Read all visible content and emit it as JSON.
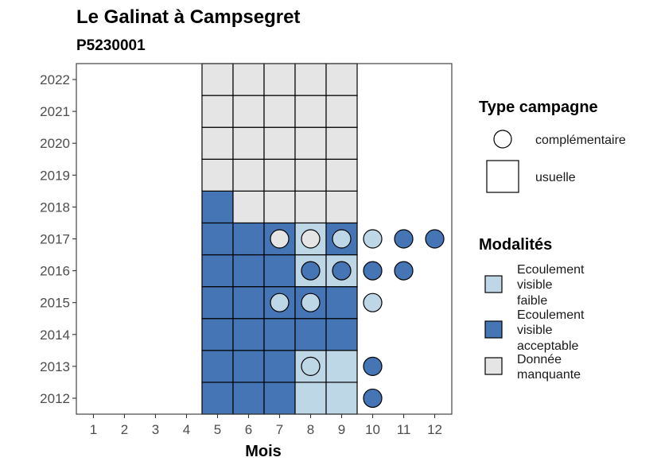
{
  "chart_data": {
    "type": "heatmap",
    "title": "Le Galinat à Campsegret",
    "subtitle": "P5230001",
    "xlabel": "Mois",
    "ylabel": "",
    "x_ticks": [
      "1",
      "2",
      "3",
      "4",
      "5",
      "6",
      "7",
      "8",
      "9",
      "10",
      "11",
      "12"
    ],
    "y_ticks": [
      "2012",
      "2013",
      "2014",
      "2015",
      "2016",
      "2017",
      "2018",
      "2019",
      "2020",
      "2021",
      "2022"
    ],
    "grid": false,
    "legend_position": "right",
    "colors": {
      "faible": "#bdd7e7",
      "acceptable": "#4575b4",
      "manquante": "#e5e5e5",
      "outline": "#000000"
    },
    "legend_campagne": {
      "title": "Type campagne",
      "items": [
        {
          "shape": "circle",
          "label": "complémentaire"
        },
        {
          "shape": "square",
          "label": "usuelle"
        }
      ]
    },
    "legend_modalites": {
      "title": "Modalités",
      "items": [
        {
          "key": "faible",
          "lines": [
            "Ecoulement",
            "visible",
            "faible"
          ]
        },
        {
          "key": "acceptable",
          "lines": [
            "Ecoulement",
            "visible",
            "acceptable"
          ]
        },
        {
          "key": "manquante",
          "lines": [
            "Donnée",
            "manquante"
          ]
        }
      ]
    },
    "usuelle": [
      {
        "year": 2012,
        "month": 5,
        "modalite": "acceptable"
      },
      {
        "year": 2012,
        "month": 6,
        "modalite": "acceptable"
      },
      {
        "year": 2012,
        "month": 7,
        "modalite": "acceptable"
      },
      {
        "year": 2012,
        "month": 8,
        "modalite": "faible"
      },
      {
        "year": 2012,
        "month": 9,
        "modalite": "faible"
      },
      {
        "year": 2013,
        "month": 5,
        "modalite": "acceptable"
      },
      {
        "year": 2013,
        "month": 6,
        "modalite": "acceptable"
      },
      {
        "year": 2013,
        "month": 7,
        "modalite": "acceptable"
      },
      {
        "year": 2013,
        "month": 8,
        "modalite": "faible"
      },
      {
        "year": 2013,
        "month": 9,
        "modalite": "faible"
      },
      {
        "year": 2014,
        "month": 5,
        "modalite": "acceptable"
      },
      {
        "year": 2014,
        "month": 6,
        "modalite": "acceptable"
      },
      {
        "year": 2014,
        "month": 7,
        "modalite": "acceptable"
      },
      {
        "year": 2014,
        "month": 8,
        "modalite": "acceptable"
      },
      {
        "year": 2014,
        "month": 9,
        "modalite": "acceptable"
      },
      {
        "year": 2015,
        "month": 5,
        "modalite": "acceptable"
      },
      {
        "year": 2015,
        "month": 6,
        "modalite": "acceptable"
      },
      {
        "year": 2015,
        "month": 7,
        "modalite": "acceptable"
      },
      {
        "year": 2015,
        "month": 8,
        "modalite": "acceptable"
      },
      {
        "year": 2015,
        "month": 9,
        "modalite": "acceptable"
      },
      {
        "year": 2016,
        "month": 5,
        "modalite": "acceptable"
      },
      {
        "year": 2016,
        "month": 6,
        "modalite": "acceptable"
      },
      {
        "year": 2016,
        "month": 7,
        "modalite": "acceptable"
      },
      {
        "year": 2016,
        "month": 8,
        "modalite": "faible"
      },
      {
        "year": 2016,
        "month": 9,
        "modalite": "faible"
      },
      {
        "year": 2017,
        "month": 5,
        "modalite": "acceptable"
      },
      {
        "year": 2017,
        "month": 6,
        "modalite": "acceptable"
      },
      {
        "year": 2017,
        "month": 7,
        "modalite": "acceptable"
      },
      {
        "year": 2017,
        "month": 8,
        "modalite": "faible"
      },
      {
        "year": 2017,
        "month": 9,
        "modalite": "acceptable"
      },
      {
        "year": 2018,
        "month": 5,
        "modalite": "acceptable"
      },
      {
        "year": 2018,
        "month": 6,
        "modalite": "manquante"
      },
      {
        "year": 2018,
        "month": 7,
        "modalite": "manquante"
      },
      {
        "year": 2018,
        "month": 8,
        "modalite": "manquante"
      },
      {
        "year": 2018,
        "month": 9,
        "modalite": "manquante"
      },
      {
        "year": 2019,
        "month": 5,
        "modalite": "manquante"
      },
      {
        "year": 2019,
        "month": 6,
        "modalite": "manquante"
      },
      {
        "year": 2019,
        "month": 7,
        "modalite": "manquante"
      },
      {
        "year": 2019,
        "month": 8,
        "modalite": "manquante"
      },
      {
        "year": 2019,
        "month": 9,
        "modalite": "manquante"
      },
      {
        "year": 2020,
        "month": 5,
        "modalite": "manquante"
      },
      {
        "year": 2020,
        "month": 6,
        "modalite": "manquante"
      },
      {
        "year": 2020,
        "month": 7,
        "modalite": "manquante"
      },
      {
        "year": 2020,
        "month": 8,
        "modalite": "manquante"
      },
      {
        "year": 2020,
        "month": 9,
        "modalite": "manquante"
      },
      {
        "year": 2021,
        "month": 5,
        "modalite": "manquante"
      },
      {
        "year": 2021,
        "month": 6,
        "modalite": "manquante"
      },
      {
        "year": 2021,
        "month": 7,
        "modalite": "manquante"
      },
      {
        "year": 2021,
        "month": 8,
        "modalite": "manquante"
      },
      {
        "year": 2021,
        "month": 9,
        "modalite": "manquante"
      },
      {
        "year": 2022,
        "month": 5,
        "modalite": "manquante"
      },
      {
        "year": 2022,
        "month": 6,
        "modalite": "manquante"
      },
      {
        "year": 2022,
        "month": 7,
        "modalite": "manquante"
      },
      {
        "year": 2022,
        "month": 8,
        "modalite": "manquante"
      },
      {
        "year": 2022,
        "month": 9,
        "modalite": "manquante"
      }
    ],
    "complementaire": [
      {
        "year": 2012,
        "month": 10,
        "modalite": "acceptable"
      },
      {
        "year": 2013,
        "month": 8,
        "modalite": "faible"
      },
      {
        "year": 2013,
        "month": 10,
        "modalite": "acceptable"
      },
      {
        "year": 2015,
        "month": 7,
        "modalite": "faible"
      },
      {
        "year": 2015,
        "month": 8,
        "modalite": "faible"
      },
      {
        "year": 2015,
        "month": 10,
        "modalite": "faible"
      },
      {
        "year": 2016,
        "month": 8,
        "modalite": "acceptable"
      },
      {
        "year": 2016,
        "month": 9,
        "modalite": "acceptable"
      },
      {
        "year": 2016,
        "month": 10,
        "modalite": "acceptable"
      },
      {
        "year": 2016,
        "month": 11,
        "modalite": "acceptable"
      },
      {
        "year": 2017,
        "month": 7,
        "modalite": "manquante"
      },
      {
        "year": 2017,
        "month": 8,
        "modalite": "manquante"
      },
      {
        "year": 2017,
        "month": 9,
        "modalite": "faible"
      },
      {
        "year": 2017,
        "month": 10,
        "modalite": "faible"
      },
      {
        "year": 2017,
        "month": 11,
        "modalite": "acceptable"
      },
      {
        "year": 2017,
        "month": 12,
        "modalite": "acceptable"
      }
    ]
  }
}
